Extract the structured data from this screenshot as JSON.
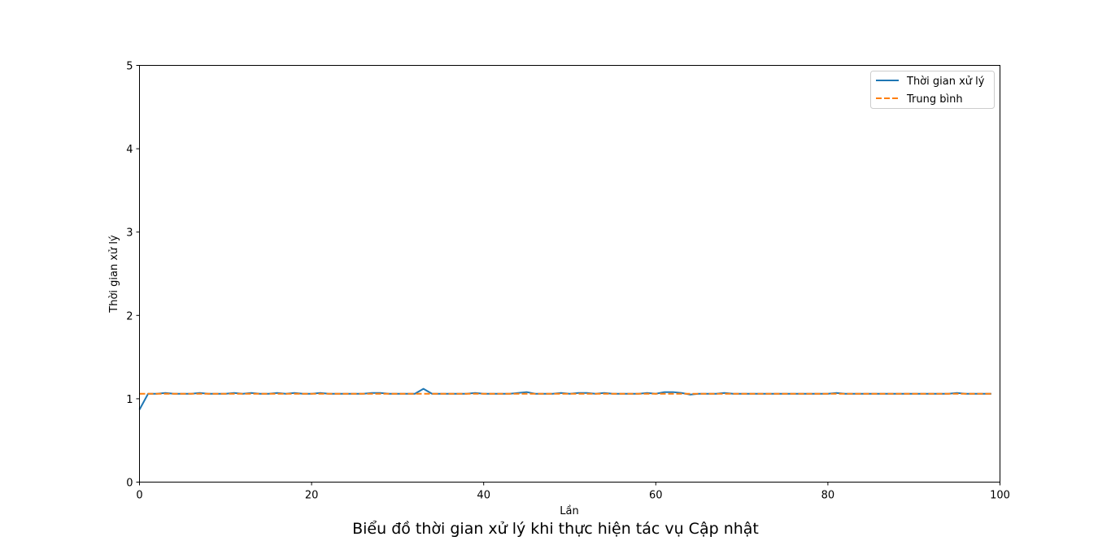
{
  "chart_data": {
    "type": "line",
    "title": "Biểu đồ thời gian xử lý khi thực hiện tác vụ Cập nhật",
    "xlabel": "Lần",
    "ylabel": "Thời gian xử lý",
    "xlim": [
      0,
      100
    ],
    "ylim": [
      0,
      5
    ],
    "xticks": [
      0,
      20,
      40,
      60,
      80,
      100
    ],
    "yticks": [
      0,
      1,
      2,
      3,
      4,
      5
    ],
    "grid": false,
    "legend_position": "top-right",
    "series": [
      {
        "name": "Thời gian xử lý",
        "color": "#1f77b4",
        "style": "solid",
        "x": [
          0,
          1,
          2,
          3,
          4,
          5,
          6,
          7,
          8,
          9,
          10,
          11,
          12,
          13,
          14,
          15,
          16,
          17,
          18,
          19,
          20,
          21,
          22,
          23,
          24,
          25,
          26,
          27,
          28,
          29,
          30,
          31,
          32,
          33,
          34,
          35,
          36,
          37,
          38,
          39,
          40,
          41,
          42,
          43,
          44,
          45,
          46,
          47,
          48,
          49,
          50,
          51,
          52,
          53,
          54,
          55,
          56,
          57,
          58,
          59,
          60,
          61,
          62,
          63,
          64,
          65,
          66,
          67,
          68,
          69,
          70,
          71,
          72,
          73,
          74,
          75,
          76,
          77,
          78,
          79,
          80,
          81,
          82,
          83,
          84,
          85,
          86,
          87,
          88,
          89,
          90,
          91,
          92,
          93,
          94,
          95,
          96,
          97,
          98,
          99
        ],
        "values": [
          0.87,
          1.06,
          1.06,
          1.07,
          1.06,
          1.06,
          1.06,
          1.07,
          1.06,
          1.06,
          1.06,
          1.07,
          1.06,
          1.07,
          1.06,
          1.06,
          1.07,
          1.06,
          1.07,
          1.06,
          1.06,
          1.07,
          1.06,
          1.06,
          1.06,
          1.06,
          1.06,
          1.07,
          1.07,
          1.06,
          1.06,
          1.06,
          1.06,
          1.12,
          1.06,
          1.06,
          1.06,
          1.06,
          1.06,
          1.07,
          1.06,
          1.06,
          1.06,
          1.06,
          1.07,
          1.08,
          1.06,
          1.06,
          1.06,
          1.07,
          1.06,
          1.07,
          1.07,
          1.06,
          1.07,
          1.06,
          1.06,
          1.06,
          1.06,
          1.07,
          1.06,
          1.08,
          1.08,
          1.07,
          1.05,
          1.06,
          1.06,
          1.06,
          1.07,
          1.06,
          1.06,
          1.06,
          1.06,
          1.06,
          1.06,
          1.06,
          1.06,
          1.06,
          1.06,
          1.06,
          1.06,
          1.07,
          1.06,
          1.06,
          1.06,
          1.06,
          1.06,
          1.06,
          1.06,
          1.06,
          1.06,
          1.06,
          1.06,
          1.06,
          1.06,
          1.07,
          1.06,
          1.06,
          1.06,
          1.06
        ]
      },
      {
        "name": "Trung bình",
        "color": "#ff7f0e",
        "style": "dashed",
        "x": [
          0,
          99
        ],
        "values": [
          1.06,
          1.06
        ]
      }
    ]
  }
}
